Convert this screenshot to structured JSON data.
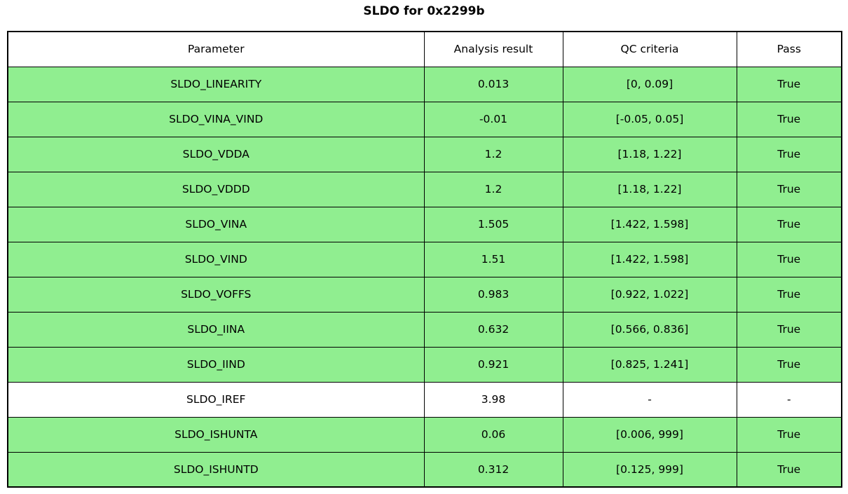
{
  "title": "SLDO for 0x2299b",
  "colors": {
    "pass_green": "#90ee90",
    "neutral_white": "#ffffff",
    "border_black": "#000000"
  },
  "table": {
    "headers": [
      "Parameter",
      "Analysis result",
      "QC criteria",
      "Pass"
    ],
    "rows": [
      {
        "parameter": "SLDO_LINEARITY",
        "analysis_result": "0.013",
        "qc_criteria": "[0, 0.09]",
        "pass": "True",
        "highlight": true
      },
      {
        "parameter": "SLDO_VINA_VIND",
        "analysis_result": "-0.01",
        "qc_criteria": "[-0.05, 0.05]",
        "pass": "True",
        "highlight": true
      },
      {
        "parameter": "SLDO_VDDA",
        "analysis_result": "1.2",
        "qc_criteria": "[1.18, 1.22]",
        "pass": "True",
        "highlight": true
      },
      {
        "parameter": "SLDO_VDDD",
        "analysis_result": "1.2",
        "qc_criteria": "[1.18, 1.22]",
        "pass": "True",
        "highlight": true
      },
      {
        "parameter": "SLDO_VINA",
        "analysis_result": "1.505",
        "qc_criteria": "[1.422, 1.598]",
        "pass": "True",
        "highlight": true
      },
      {
        "parameter": "SLDO_VIND",
        "analysis_result": "1.51",
        "qc_criteria": "[1.422, 1.598]",
        "pass": "True",
        "highlight": true
      },
      {
        "parameter": "SLDO_VOFFS",
        "analysis_result": "0.983",
        "qc_criteria": "[0.922, 1.022]",
        "pass": "True",
        "highlight": true
      },
      {
        "parameter": "SLDO_IINA",
        "analysis_result": "0.632",
        "qc_criteria": "[0.566, 0.836]",
        "pass": "True",
        "highlight": true
      },
      {
        "parameter": "SLDO_IIND",
        "analysis_result": "0.921",
        "qc_criteria": "[0.825, 1.241]",
        "pass": "True",
        "highlight": true
      },
      {
        "parameter": "SLDO_IREF",
        "analysis_result": "3.98",
        "qc_criteria": "-",
        "pass": "-",
        "highlight": false
      },
      {
        "parameter": "SLDO_ISHUNTA",
        "analysis_result": "0.06",
        "qc_criteria": "[0.006, 999]",
        "pass": "True",
        "highlight": true
      },
      {
        "parameter": "SLDO_ISHUNTD",
        "analysis_result": "0.312",
        "qc_criteria": "[0.125, 999]",
        "pass": "True",
        "highlight": true
      }
    ]
  },
  "chart_data": {
    "type": "table",
    "title": "SLDO for 0x2299b",
    "columns": [
      "Parameter",
      "Analysis result",
      "QC criteria",
      "Pass"
    ],
    "rows": [
      [
        "SLDO_LINEARITY",
        0.013,
        "[0, 0.09]",
        "True"
      ],
      [
        "SLDO_VINA_VIND",
        -0.01,
        "[-0.05, 0.05]",
        "True"
      ],
      [
        "SLDO_VDDA",
        1.2,
        "[1.18, 1.22]",
        "True"
      ],
      [
        "SLDO_VDDD",
        1.2,
        "[1.18, 1.22]",
        "True"
      ],
      [
        "SLDO_VINA",
        1.505,
        "[1.422, 1.598]",
        "True"
      ],
      [
        "SLDO_VIND",
        1.51,
        "[1.422, 1.598]",
        "True"
      ],
      [
        "SLDO_VOFFS",
        0.983,
        "[0.922, 1.022]",
        "True"
      ],
      [
        "SLDO_IINA",
        0.632,
        "[0.566, 0.836]",
        "True"
      ],
      [
        "SLDO_IIND",
        0.921,
        "[0.825, 1.241]",
        "True"
      ],
      [
        "SLDO_IREF",
        3.98,
        "-",
        "-"
      ],
      [
        "SLDO_ISHUNTA",
        0.06,
        "[0.006, 999]",
        "True"
      ],
      [
        "SLDO_ISHUNTD",
        0.312,
        "[0.125, 999]",
        "True"
      ]
    ],
    "row_fill_colors": [
      "#90ee90",
      "#90ee90",
      "#90ee90",
      "#90ee90",
      "#90ee90",
      "#90ee90",
      "#90ee90",
      "#90ee90",
      "#90ee90",
      "#ffffff",
      "#90ee90",
      "#90ee90"
    ],
    "layout": {
      "header_fill": "#ffffff",
      "edge_color": "#000000",
      "title_position": "top-center"
    }
  }
}
